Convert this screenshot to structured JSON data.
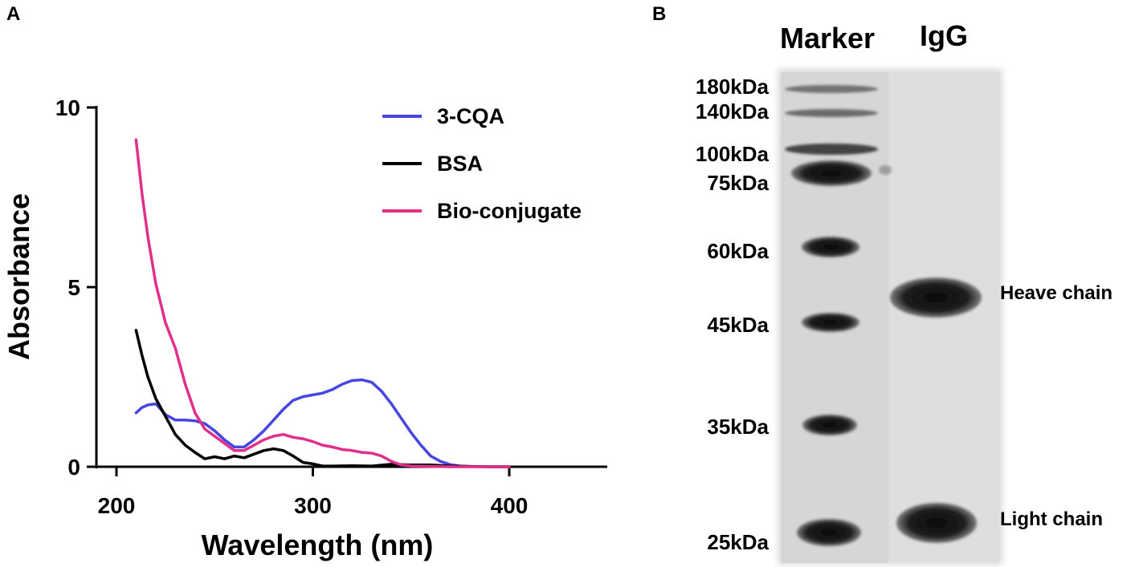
{
  "panels": {
    "a_label": "A",
    "b_label": "B"
  },
  "chart_data": [
    {
      "type": "line",
      "title": "",
      "xlabel": "Wavelength (nm)",
      "ylabel": "Absorbance",
      "xlim": [
        200,
        450
      ],
      "ylim": [
        0,
        10
      ],
      "xticks": [
        200,
        300,
        400
      ],
      "yticks": [
        0,
        5,
        10
      ],
      "grid": false,
      "legend_position": "top-right",
      "series": [
        {
          "name": "3-CQA",
          "color": "#4646e0",
          "x": [
            210,
            213,
            216,
            220,
            225,
            230,
            235,
            240,
            245,
            250,
            255,
            260,
            265,
            270,
            275,
            280,
            285,
            290,
            295,
            300,
            305,
            310,
            315,
            320,
            325,
            330,
            335,
            340,
            345,
            350,
            355,
            360,
            365,
            370,
            375,
            380,
            390,
            400
          ],
          "y": [
            1.5,
            1.65,
            1.72,
            1.75,
            1.45,
            1.3,
            1.3,
            1.28,
            1.2,
            1.0,
            0.75,
            0.55,
            0.55,
            0.75,
            1.0,
            1.3,
            1.6,
            1.85,
            1.95,
            2.0,
            2.05,
            2.15,
            2.3,
            2.4,
            2.42,
            2.35,
            2.1,
            1.75,
            1.35,
            0.95,
            0.6,
            0.3,
            0.15,
            0.06,
            0.02,
            0.01,
            0.0,
            0.0
          ]
        },
        {
          "name": "BSA",
          "color": "#000000",
          "x": [
            210,
            213,
            216,
            220,
            225,
            230,
            235,
            240,
            245,
            250,
            255,
            260,
            265,
            270,
            275,
            280,
            285,
            290,
            295,
            300,
            305,
            310,
            320,
            330,
            340,
            350,
            360,
            370,
            380,
            390,
            400
          ],
          "y": [
            3.8,
            3.1,
            2.5,
            1.9,
            1.4,
            0.9,
            0.6,
            0.4,
            0.22,
            0.28,
            0.22,
            0.3,
            0.25,
            0.35,
            0.45,
            0.5,
            0.45,
            0.3,
            0.12,
            0.08,
            0.02,
            0.02,
            0.03,
            0.02,
            0.07,
            0.05,
            0.05,
            0.02,
            0.01,
            0.0,
            0.0
          ]
        },
        {
          "name": "Bio-conjugate",
          "color": "#e0308a",
          "x": [
            210,
            213,
            216,
            220,
            225,
            230,
            235,
            240,
            245,
            250,
            255,
            260,
            265,
            270,
            275,
            280,
            285,
            290,
            295,
            300,
            305,
            310,
            315,
            320,
            325,
            330,
            335,
            340,
            345,
            350,
            360,
            370,
            380,
            390,
            400
          ],
          "y": [
            9.1,
            7.6,
            6.4,
            5.1,
            4.0,
            3.3,
            2.3,
            1.5,
            1.05,
            0.85,
            0.65,
            0.45,
            0.45,
            0.6,
            0.75,
            0.85,
            0.9,
            0.82,
            0.78,
            0.7,
            0.6,
            0.55,
            0.48,
            0.45,
            0.4,
            0.38,
            0.3,
            0.15,
            0.05,
            0.02,
            0.01,
            0.0,
            0.0,
            0.0,
            0.0
          ]
        }
      ]
    }
  ],
  "gel": {
    "columns": {
      "marker": "Marker",
      "sample": "IgG"
    },
    "marker_labels": [
      "180kDa",
      "140kDa",
      "100kDa",
      "75kDa",
      "60kDa",
      "45kDa",
      "35kDa",
      "25kDa"
    ],
    "band_labels": {
      "heavy": "Heave chain",
      "light": "Light chain"
    }
  }
}
